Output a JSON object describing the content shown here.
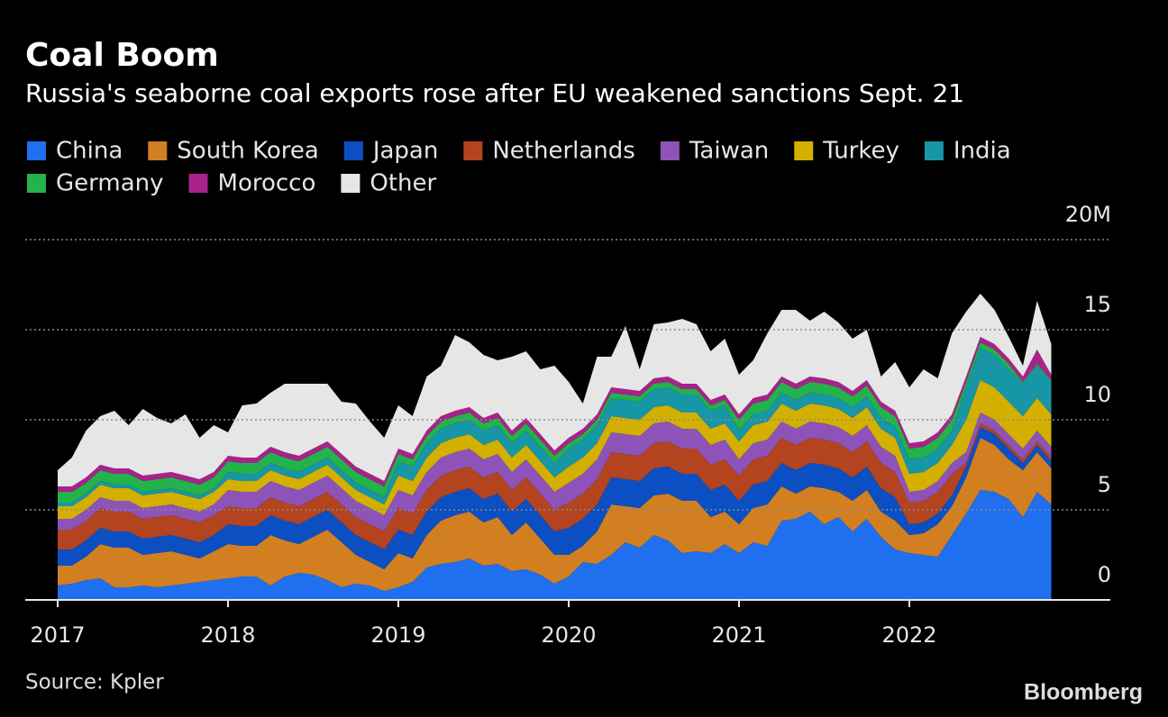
{
  "chart_data": {
    "type": "stacked_area",
    "title": "Coal Boom",
    "subtitle": "Russia's seaborne coal exports rose after EU weakened sanctions Sept. 21",
    "source": "Source: Kpler",
    "logo": "Bloomberg",
    "categories": [
      "2017",
      null,
      null,
      null,
      null,
      null,
      null,
      null,
      null,
      null,
      null,
      null,
      "2018",
      null,
      null,
      null,
      null,
      null,
      null,
      null,
      null,
      null,
      null,
      null,
      "2019",
      null,
      null,
      null,
      null,
      null,
      null,
      null,
      null,
      null,
      null,
      null,
      "2020",
      null,
      null,
      null,
      null,
      null,
      null,
      null,
      null,
      null,
      null,
      null,
      "2021",
      null,
      null,
      null,
      null,
      null,
      null,
      null,
      null,
      null,
      null,
      null,
      "2022",
      null,
      null,
      null,
      null,
      null,
      null,
      null,
      null,
      null,
      null
    ],
    "ylim": [
      0,
      20
    ],
    "yticks": [
      0,
      5,
      10,
      15,
      {
        "value": 20,
        "label": "20M"
      }
    ],
    "grid": true,
    "series": [
      {
        "name": "China",
        "color": "#1f6fef",
        "values": [
          0.8,
          0.9,
          1.1,
          1.2,
          0.7,
          0.7,
          0.8,
          0.7,
          0.8,
          0.9,
          1.0,
          1.1,
          1.2,
          1.3,
          1.3,
          0.8,
          1.3,
          1.5,
          1.4,
          1.1,
          0.7,
          0.9,
          0.8,
          0.5,
          0.7,
          1.0,
          1.8,
          2.0,
          2.1,
          2.3,
          1.9,
          2.0,
          1.6,
          1.7,
          1.4,
          0.9,
          1.3,
          2.1,
          2.0,
          2.5,
          3.2,
          2.9,
          3.6,
          3.3,
          2.6,
          2.7,
          2.6,
          3.1,
          2.6,
          3.2,
          3.0,
          4.4,
          4.5,
          4.9,
          4.2,
          4.6,
          3.8,
          4.5,
          3.5,
          2.8,
          2.6,
          2.5,
          2.4,
          3.6,
          4.8,
          6.1,
          6.0,
          5.6,
          4.6,
          6.0,
          5.3
        ]
      },
      {
        "name": "South Korea",
        "color": "#d27f22",
        "values": [
          1.1,
          1.0,
          1.3,
          1.9,
          2.2,
          2.2,
          1.7,
          1.9,
          1.9,
          1.6,
          1.3,
          1.6,
          1.9,
          1.7,
          1.7,
          2.8,
          2.0,
          1.6,
          2.1,
          2.8,
          2.5,
          1.6,
          1.3,
          1.2,
          1.9,
          1.3,
          1.8,
          2.4,
          2.6,
          2.6,
          2.4,
          2.6,
          2.0,
          2.6,
          2.0,
          1.6,
          1.2,
          0.9,
          1.8,
          2.8,
          2.0,
          2.2,
          2.2,
          2.6,
          2.9,
          2.8,
          2.0,
          1.8,
          1.6,
          1.9,
          2.3,
          1.9,
          1.4,
          1.4,
          2.0,
          1.4,
          1.7,
          1.6,
          1.4,
          1.6,
          1.0,
          1.2,
          1.8,
          1.6,
          2.0,
          2.9,
          2.6,
          2.2,
          2.6,
          2.2,
          2.0
        ]
      },
      {
        "name": "Japan",
        "color": "#0b4fc2",
        "values": [
          0.9,
          0.9,
          0.9,
          0.9,
          0.9,
          0.9,
          0.9,
          0.9,
          0.9,
          0.9,
          0.9,
          0.9,
          1.1,
          1.1,
          1.1,
          1.1,
          1.1,
          1.1,
          1.1,
          1.1,
          1.1,
          1.1,
          1.1,
          1.1,
          1.3,
          1.3,
          1.3,
          1.3,
          1.3,
          1.3,
          1.3,
          1.3,
          1.3,
          1.3,
          1.3,
          1.3,
          1.5,
          1.5,
          1.5,
          1.5,
          1.5,
          1.5,
          1.5,
          1.5,
          1.5,
          1.5,
          1.5,
          1.5,
          1.3,
          1.3,
          1.3,
          1.3,
          1.3,
          1.3,
          1.3,
          1.3,
          1.3,
          1.3,
          1.3,
          1.3,
          0.6,
          0.6,
          0.6,
          0.6,
          0.6,
          0.6,
          0.6,
          0.6,
          0.4,
          0.4,
          0.4
        ]
      },
      {
        "name": "Netherlands",
        "color": "#b3441f",
        "values": [
          1.1,
          1.1,
          1.1,
          1.1,
          1.1,
          1.1,
          1.1,
          1.1,
          1.1,
          1.1,
          1.1,
          1.1,
          1.0,
          1.0,
          1.0,
          1.0,
          1.0,
          1.0,
          1.0,
          1.0,
          1.0,
          1.0,
          1.0,
          1.0,
          1.2,
          1.2,
          1.2,
          1.2,
          1.2,
          1.2,
          1.2,
          1.2,
          1.2,
          1.2,
          1.2,
          1.2,
          1.4,
          1.4,
          1.4,
          1.4,
          1.4,
          1.4,
          1.4,
          1.4,
          1.4,
          1.4,
          1.4,
          1.4,
          1.4,
          1.4,
          1.4,
          1.4,
          1.4,
          1.4,
          1.4,
          1.4,
          1.4,
          1.4,
          1.4,
          1.4,
          1.2,
          1.2,
          1.2,
          1.2,
          0.2,
          0.2,
          0.2,
          0.2,
          0.2,
          0.2,
          0.2
        ]
      },
      {
        "name": "Taiwan",
        "color": "#8d53b8",
        "values": [
          0.6,
          0.6,
          0.6,
          0.6,
          0.6,
          0.6,
          0.6,
          0.6,
          0.6,
          0.6,
          0.6,
          0.6,
          0.9,
          0.9,
          0.9,
          0.9,
          0.9,
          0.9,
          0.9,
          0.9,
          0.9,
          0.9,
          0.9,
          0.9,
          1.0,
          1.0,
          1.0,
          1.0,
          1.0,
          1.0,
          1.0,
          1.0,
          1.0,
          1.0,
          1.0,
          1.0,
          1.1,
          1.1,
          1.1,
          1.1,
          1.1,
          1.1,
          1.1,
          1.1,
          1.1,
          1.1,
          1.1,
          1.1,
          0.9,
          0.9,
          0.9,
          0.9,
          0.9,
          0.9,
          0.9,
          0.9,
          0.9,
          0.9,
          0.9,
          0.9,
          0.6,
          0.6,
          0.6,
          0.6,
          0.6,
          0.6,
          0.6,
          0.6,
          0.6,
          0.6,
          0.6
        ]
      },
      {
        "name": "Turkey",
        "color": "#d3b000",
        "values": [
          0.7,
          0.7,
          0.7,
          0.7,
          0.7,
          0.7,
          0.7,
          0.7,
          0.7,
          0.7,
          0.7,
          0.7,
          0.6,
          0.6,
          0.6,
          0.6,
          0.6,
          0.6,
          0.6,
          0.6,
          0.6,
          0.6,
          0.6,
          0.6,
          0.8,
          0.8,
          0.8,
          0.8,
          0.8,
          0.8,
          0.8,
          0.8,
          0.8,
          0.8,
          0.8,
          0.8,
          0.9,
          0.9,
          0.9,
          0.9,
          0.9,
          0.9,
          0.9,
          0.9,
          0.9,
          0.9,
          0.9,
          0.9,
          1.0,
          1.0,
          1.0,
          1.0,
          1.0,
          1.0,
          1.0,
          1.0,
          1.0,
          1.0,
          1.0,
          1.0,
          1.0,
          1.0,
          1.0,
          1.0,
          1.8,
          1.8,
          1.8,
          1.8,
          1.8,
          1.8,
          1.8
        ]
      },
      {
        "name": "India",
        "color": "#1796a6",
        "values": [
          0.2,
          0.2,
          0.2,
          0.2,
          0.2,
          0.2,
          0.2,
          0.2,
          0.2,
          0.2,
          0.2,
          0.2,
          0.4,
          0.4,
          0.4,
          0.4,
          0.4,
          0.4,
          0.4,
          0.4,
          0.4,
          0.4,
          0.4,
          0.4,
          0.8,
          0.8,
          0.8,
          0.8,
          0.8,
          0.8,
          0.8,
          0.8,
          0.8,
          0.8,
          0.8,
          0.8,
          1.0,
          1.0,
          1.0,
          1.0,
          1.0,
          1.0,
          1.0,
          1.0,
          1.0,
          1.0,
          1.0,
          1.0,
          0.6,
          0.6,
          0.6,
          0.6,
          0.6,
          0.6,
          0.6,
          0.6,
          0.6,
          0.6,
          0.6,
          0.6,
          0.8,
          0.8,
          0.8,
          0.8,
          1.8,
          1.8,
          1.8,
          1.8,
          1.8,
          1.8,
          1.8
        ]
      },
      {
        "name": "Germany",
        "color": "#23b24b",
        "values": [
          0.6,
          0.6,
          0.6,
          0.6,
          0.6,
          0.6,
          0.6,
          0.6,
          0.6,
          0.6,
          0.6,
          0.6,
          0.6,
          0.6,
          0.6,
          0.6,
          0.6,
          0.6,
          0.6,
          0.6,
          0.6,
          0.6,
          0.6,
          0.6,
          0.4,
          0.4,
          0.4,
          0.4,
          0.4,
          0.4,
          0.4,
          0.4,
          0.4,
          0.4,
          0.4,
          0.4,
          0.3,
          0.3,
          0.3,
          0.3,
          0.3,
          0.3,
          0.3,
          0.3,
          0.3,
          0.3,
          0.3,
          0.3,
          0.6,
          0.6,
          0.6,
          0.6,
          0.6,
          0.6,
          0.6,
          0.6,
          0.6,
          0.6,
          0.6,
          0.6,
          0.6,
          0.6,
          0.6,
          0.6,
          0.3,
          0.3,
          0.3,
          0.3,
          0.1,
          0.1,
          0.1
        ]
      },
      {
        "name": "Morocco",
        "color": "#a8228b",
        "values": [
          0.3,
          0.3,
          0.3,
          0.3,
          0.3,
          0.3,
          0.3,
          0.3,
          0.3,
          0.3,
          0.3,
          0.3,
          0.3,
          0.3,
          0.3,
          0.3,
          0.3,
          0.3,
          0.3,
          0.3,
          0.3,
          0.3,
          0.3,
          0.3,
          0.3,
          0.3,
          0.3,
          0.3,
          0.3,
          0.3,
          0.3,
          0.3,
          0.3,
          0.3,
          0.3,
          0.3,
          0.3,
          0.3,
          0.3,
          0.3,
          0.3,
          0.3,
          0.3,
          0.3,
          0.3,
          0.3,
          0.3,
          0.3,
          0.3,
          0.3,
          0.3,
          0.3,
          0.3,
          0.3,
          0.3,
          0.3,
          0.3,
          0.3,
          0.3,
          0.3,
          0.3,
          0.3,
          0.3,
          0.3,
          0.3,
          0.3,
          0.3,
          0.3,
          0.3,
          0.8,
          0.3
        ]
      },
      {
        "name": "Other",
        "color": "#e6e6e6",
        "values": [
          0.9,
          1.6,
          2.6,
          2.7,
          3.2,
          2.4,
          3.7,
          3.1,
          2.7,
          3.4,
          2.3,
          2.6,
          1.3,
          2.9,
          3.0,
          3.0,
          3.8,
          4.0,
          3.6,
          3.2,
          2.9,
          3.5,
          2.9,
          2.4,
          2.4,
          2.1,
          3.0,
          2.8,
          4.2,
          3.6,
          3.5,
          2.9,
          4.1,
          3.7,
          3.6,
          4.7,
          3.1,
          1.4,
          3.2,
          1.7,
          3.5,
          1.2,
          3.0,
          3.0,
          3.6,
          3.3,
          2.7,
          3.1,
          2.2,
          2.1,
          3.4,
          3.7,
          4.1,
          3.1,
          3.7,
          3.3,
          2.9,
          2.8,
          1.4,
          2.7,
          3.1,
          4.0,
          3.0,
          4.5,
          3.6,
          2.4,
          1.9,
          1.2,
          0.6,
          2.7,
          1.7
        ]
      }
    ]
  }
}
